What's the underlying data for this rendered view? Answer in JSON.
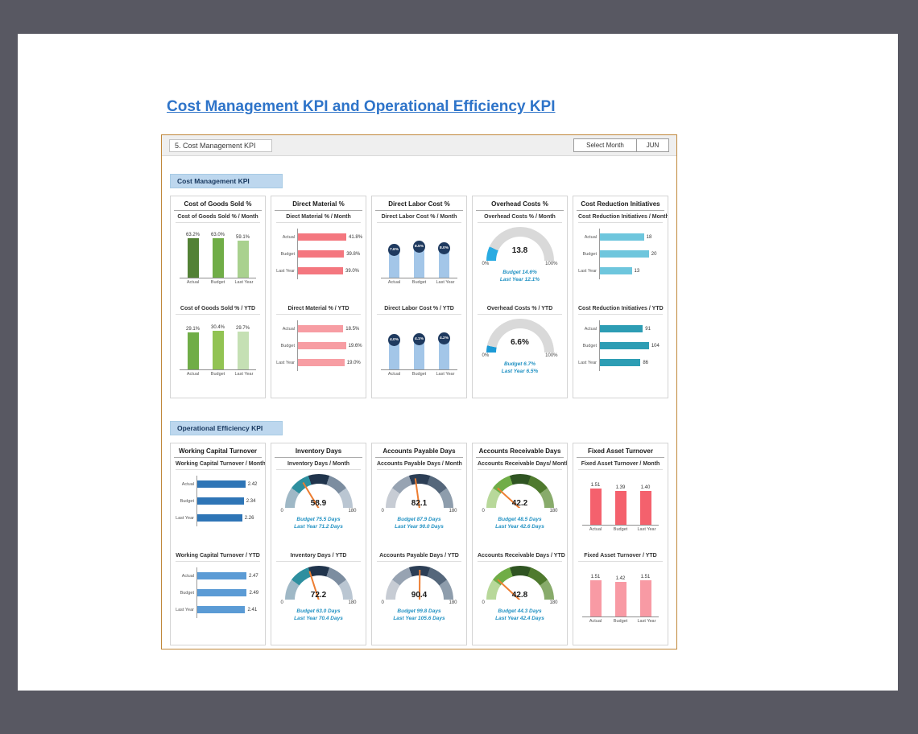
{
  "page": {
    "title": "Cost Management KPI and Operational Efficiency KPI"
  },
  "toolbar": {
    "panel_title": "5. Cost Management KPI",
    "select_month_label": "Select Month",
    "selected_month": "JUN"
  },
  "colors": {
    "background": "#585862",
    "title_link": "#2e74c9",
    "dashboard_border": "#c0873a",
    "section_label_bg": "#bdd7ee",
    "annotation_text": "#2292c3",
    "needle": "#ed7d31"
  },
  "sections": [
    {
      "label": "Cost Management KPI",
      "cards": [
        {
          "title": "Cost of Goods Sold %",
          "charts": [
            "cogs_month",
            "cogs_ytd"
          ]
        },
        {
          "title": "Direct Material %",
          "charts": [
            "dm_month",
            "dm_ytd"
          ]
        },
        {
          "title": "Direct Labor Cost %",
          "charts": [
            "dlc_month",
            "dlc_ytd"
          ]
        },
        {
          "title": "Overhead Costs %",
          "charts": [
            "oh_month",
            "oh_ytd"
          ]
        },
        {
          "title": "Cost Reduction Initiatives",
          "charts": [
            "cri_month",
            "cri_ytd"
          ]
        }
      ]
    },
    {
      "label": "Operational Efficiency KPI",
      "cards": [
        {
          "title": "Working Capital Turnover",
          "charts": [
            "wct_month",
            "wct_ytd"
          ]
        },
        {
          "title": "Inventory Days",
          "charts": [
            "inv_month",
            "inv_ytd"
          ]
        },
        {
          "title": "Accounts Payable Days",
          "charts": [
            "ap_month",
            "ap_ytd"
          ]
        },
        {
          "title": "Accounts Receivable Days",
          "charts": [
            "ar_month",
            "ar_ytd"
          ]
        },
        {
          "title": "Fixed Asset Turnover",
          "charts": [
            "fat_month",
            "fat_ytd"
          ]
        }
      ]
    }
  ],
  "chart_data": [
    {
      "id": "cogs_month",
      "type": "bar",
      "title": "Cost of Goods Sold % / Month",
      "categories": [
        "Actual",
        "Budget",
        "Last Year"
      ],
      "values": [
        63.2,
        63.0,
        59.1
      ],
      "value_labels": [
        "63.2%",
        "63.0%",
        "59.1%"
      ],
      "colors": [
        "#538135",
        "#70ad47",
        "#a9d18e"
      ],
      "ylim": [
        0,
        70
      ]
    },
    {
      "id": "cogs_ytd",
      "type": "bar",
      "title": "Cost of Goods Sold % / YTD",
      "categories": [
        "Actual",
        "Budget",
        "Last Year"
      ],
      "values": [
        29.1,
        30.4,
        29.7
      ],
      "value_labels": [
        "29.1%",
        "30.4%",
        "29.7%"
      ],
      "colors": [
        "#70ad47",
        "#92c353",
        "#c5e0b4"
      ],
      "ylim": [
        0,
        34
      ]
    },
    {
      "id": "dm_month",
      "type": "hbar",
      "title": "Diect Material % / Month",
      "categories": [
        "Actual",
        "Budget",
        "Last Year"
      ],
      "values": [
        41.8,
        39.8,
        39.0
      ],
      "value_labels": [
        "41.8%",
        "39.8%",
        "39.0%"
      ],
      "color": "#f4777f",
      "xlim": [
        0,
        55
      ]
    },
    {
      "id": "dm_ytd",
      "type": "hbar",
      "title": "Direct Material % / YTD",
      "categories": [
        "Actual",
        "Budget",
        "Last Year"
      ],
      "values": [
        18.5,
        19.6,
        19.0
      ],
      "value_labels": [
        "18.5%",
        "19.6%",
        "19.0%"
      ],
      "color": "#f79da3",
      "xlim": [
        0,
        26
      ]
    },
    {
      "id": "dlc_month",
      "type": "bar-circle",
      "title": "Direct Labor Cost % / Month",
      "categories": [
        "Actual",
        "Budget",
        "Last Year"
      ],
      "values": [
        7.6,
        8.5,
        8.0
      ],
      "value_labels": [
        "7.6%",
        "8.5%",
        "8.0%"
      ],
      "bar_color": "#a3c6e8",
      "circle_color": "#1f3a5f",
      "ylim": [
        0,
        10
      ]
    },
    {
      "id": "dlc_ytd",
      "type": "bar-circle",
      "title": "Direct Labor Cost % / YTD",
      "categories": [
        "Actual",
        "Budget",
        "Last Year"
      ],
      "values": [
        4.0,
        4.1,
        4.2
      ],
      "value_labels": [
        "4.0%",
        "4.1%",
        "4.2%"
      ],
      "bar_color": "#a3c6e8",
      "circle_color": "#1f3a5f",
      "ylim": [
        0,
        5
      ]
    },
    {
      "id": "oh_month",
      "type": "gauge",
      "style": "progress",
      "title": "Overhead Costs % / Month",
      "value": 13.8,
      "value_label": "13.8",
      "range": [
        0,
        100
      ],
      "min_label": "0%",
      "max_label": "100%",
      "fill_color": "#29abe2",
      "track_color": "#d9d9d9",
      "annotations": [
        "Budget 14.6%",
        "Last Year 12.1%"
      ]
    },
    {
      "id": "oh_ytd",
      "type": "gauge",
      "style": "progress",
      "title": "Overhead Costs % / YTD",
      "value": 6.6,
      "value_label": "6.6%",
      "range": [
        0,
        100
      ],
      "min_label": "0%",
      "max_label": "100%",
      "fill_color": "#1c9ad6",
      "track_color": "#d9d9d9",
      "annotations": [
        "Budget 6.7%",
        "Last Year 6.5%"
      ]
    },
    {
      "id": "cri_month",
      "type": "hbar",
      "title": "Cost Reduction Initiatives / Month",
      "categories": [
        "Actual",
        "Budget",
        "Last Year"
      ],
      "values": [
        18,
        20,
        13
      ],
      "value_labels": [
        "18",
        "20",
        "13"
      ],
      "color": "#6ec6dd",
      "xlim": [
        0,
        26
      ]
    },
    {
      "id": "cri_ytd",
      "type": "hbar",
      "title": "Cost Reduction Initiatives / YTD",
      "categories": [
        "Actual",
        "Budget",
        "Last Year"
      ],
      "values": [
        91,
        104,
        86
      ],
      "value_labels": [
        "91",
        "104",
        "86"
      ],
      "color": "#2d9db4",
      "xlim": [
        0,
        135
      ]
    },
    {
      "id": "wct_month",
      "type": "hbar",
      "title": "Working Capital Turnover / Month",
      "categories": [
        "Actual",
        "Budget",
        "Last Year"
      ],
      "values": [
        2.42,
        2.34,
        2.26
      ],
      "value_labels": [
        "2.42",
        "2.34",
        "2.26"
      ],
      "color": "#2e75b6",
      "xlim": [
        0,
        3.2
      ]
    },
    {
      "id": "wct_ytd",
      "type": "hbar",
      "title": "Working Capital Turnover / YTD",
      "categories": [
        "Actual",
        "Budget",
        "Last Year"
      ],
      "values": [
        2.47,
        2.49,
        2.41
      ],
      "value_labels": [
        "2.47",
        "2.49",
        "2.41"
      ],
      "color": "#5b9bd5",
      "xlim": [
        0,
        3.2
      ]
    },
    {
      "id": "inv_month",
      "type": "gauge",
      "style": "segments",
      "title": "Inventory Days / Month",
      "value": 58.9,
      "value_label": "58.9",
      "range": [
        0,
        180
      ],
      "min_label": "0",
      "max_label": "180",
      "segment_colors": [
        "#9fb8c6",
        "#2e8f9f",
        "#20344c",
        "#7c8da0",
        "#bac6d2"
      ],
      "annotations": [
        "Budget 75.5 Days",
        "Last Year 71.2 Days"
      ]
    },
    {
      "id": "inv_ytd",
      "type": "gauge",
      "style": "segments",
      "title": "Inventory Days / YTD",
      "value": 72.2,
      "value_label": "72.2",
      "range": [
        0,
        180
      ],
      "min_label": "0",
      "max_label": "180",
      "segment_colors": [
        "#9fb8c6",
        "#2e8f9f",
        "#20344c",
        "#7c8da0",
        "#bac6d2"
      ],
      "annotations": [
        "Budget 63.0 Days",
        "Last Year 70.4 Days"
      ]
    },
    {
      "id": "ap_month",
      "type": "gauge",
      "style": "segments",
      "title": "Accounts Payable Days / Month",
      "value": 82.1,
      "value_label": "82.1",
      "range": [
        0,
        180
      ],
      "min_label": "0",
      "max_label": "180",
      "segment_colors": [
        "#c7ccd4",
        "#97a3b2",
        "#2c3e55",
        "#55677b",
        "#8e9dac"
      ],
      "annotations": [
        "Budget 87.9 Days",
        "Last Year 90.0 Days"
      ]
    },
    {
      "id": "ap_ytd",
      "type": "gauge",
      "style": "segments",
      "title": "Accounts Payable Days / YTD",
      "value": 90.4,
      "value_label": "90.4",
      "range": [
        0,
        180
      ],
      "min_label": "0",
      "max_label": "180",
      "segment_colors": [
        "#c7ccd4",
        "#97a3b2",
        "#2c3e55",
        "#55677b",
        "#8e9dac"
      ],
      "annotations": [
        "Budget 99.8 Days",
        "Last Year 105.6 Days"
      ]
    },
    {
      "id": "ar_month",
      "type": "gauge",
      "style": "segments",
      "title": "Accounts Receivable Days/ Month",
      "value": 42.2,
      "value_label": "42.2",
      "range": [
        0,
        180
      ],
      "min_label": "0",
      "max_label": "180",
      "segment_colors": [
        "#b8d89a",
        "#70ad47",
        "#2f5422",
        "#4f7a2e",
        "#88ab6b"
      ],
      "annotations": [
        "Budget 48.5 Days",
        "Last Year 42.6 Days"
      ]
    },
    {
      "id": "ar_ytd",
      "type": "gauge",
      "style": "segments",
      "title": "Accounts Receivable Days / YTD",
      "value": 42.8,
      "value_label": "42.8",
      "range": [
        0,
        180
      ],
      "min_label": "0",
      "max_label": "180",
      "segment_colors": [
        "#b8d89a",
        "#70ad47",
        "#2f5422",
        "#4f7a2e",
        "#88ab6b"
      ],
      "annotations": [
        "Budget 44.3 Days",
        "Last Year 42.4 Days"
      ]
    },
    {
      "id": "fat_month",
      "type": "bar",
      "title": "Fixed Asset Turnover / Month",
      "categories": [
        "Actual",
        "Budget",
        "Last Year"
      ],
      "values": [
        1.51,
        1.39,
        1.4
      ],
      "value_labels": [
        "1.51",
        "1.39",
        "1.40"
      ],
      "colors": [
        "#f4616d",
        "#f4616d",
        "#f4616d"
      ],
      "ylim": [
        0,
        1.8
      ]
    },
    {
      "id": "fat_ytd",
      "type": "bar",
      "title": "Fixed Asset Turnover / YTD",
      "categories": [
        "Actual",
        "Budget",
        "Last Year"
      ],
      "values": [
        1.51,
        1.42,
        1.51
      ],
      "value_labels": [
        "1.51",
        "1.42",
        "1.51"
      ],
      "colors": [
        "#f89aa4",
        "#f89aa4",
        "#f89aa4"
      ],
      "ylim": [
        0,
        1.8
      ]
    }
  ]
}
